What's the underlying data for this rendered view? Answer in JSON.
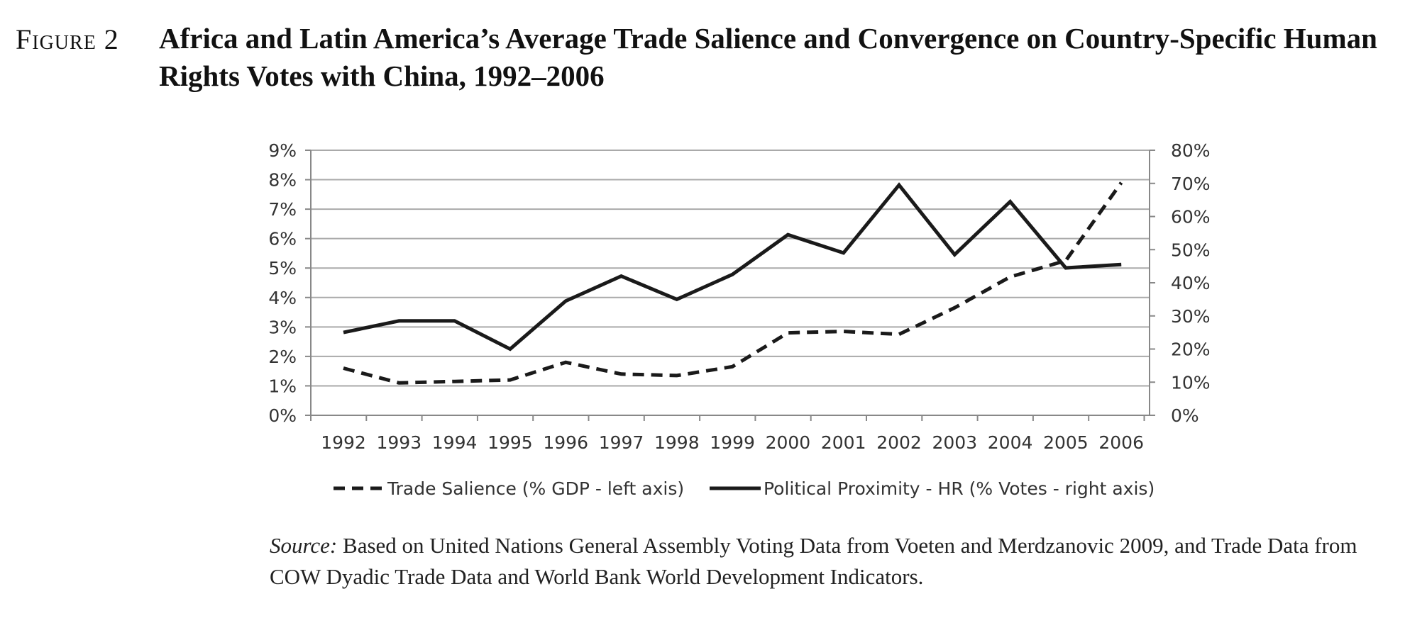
{
  "figure": {
    "label": "Figure 2",
    "title": "Africa and Latin America’s Average Trade Salience and Convergence on Country-Specific Human Rights Votes with China, 1992–2006"
  },
  "source": {
    "label": "Source:",
    "text": " Based on United Nations General Assembly Voting Data from Voeten and Merdzanovic 2009, and Trade Data from COW Dyadic Trade Data and World Bank World Development Indicators."
  },
  "chart_data": {
    "type": "line",
    "title": "",
    "xlabel": "",
    "ylabel": "",
    "x": [
      "1992",
      "1993",
      "1994",
      "1995",
      "1996",
      "1997",
      "1998",
      "1999",
      "2000",
      "2001",
      "2002",
      "2003",
      "2004",
      "2005",
      "2006"
    ],
    "y_left_ticks": [
      "0%",
      "1%",
      "2%",
      "3%",
      "4%",
      "5%",
      "6%",
      "7%",
      "8%",
      "9%"
    ],
    "y_right_ticks": [
      "0%",
      "10%",
      "20%",
      "30%",
      "40%",
      "50%",
      "60%",
      "70%",
      "80%"
    ],
    "y_left_range": [
      0,
      9
    ],
    "y_right_range": [
      0,
      80
    ],
    "grid": true,
    "legend_position": "bottom",
    "series": [
      {
        "name": "Trade Salience (% GDP - left axis)",
        "axis": "left",
        "style": "dashed",
        "color": "#1a1a1a",
        "values": [
          1.6,
          1.1,
          1.15,
          1.2,
          1.8,
          1.4,
          1.35,
          1.65,
          2.8,
          2.85,
          2.75,
          3.65,
          4.7,
          5.25,
          7.9
        ]
      },
      {
        "name": "Political Proximity - HR (% Votes - right axis)",
        "axis": "right",
        "style": "solid",
        "color": "#1a1a1a",
        "values": [
          25,
          28.5,
          28.5,
          20,
          34.5,
          42,
          35,
          42.5,
          54.5,
          49,
          69.5,
          48.5,
          64.5,
          44.5,
          45.5
        ]
      }
    ]
  }
}
